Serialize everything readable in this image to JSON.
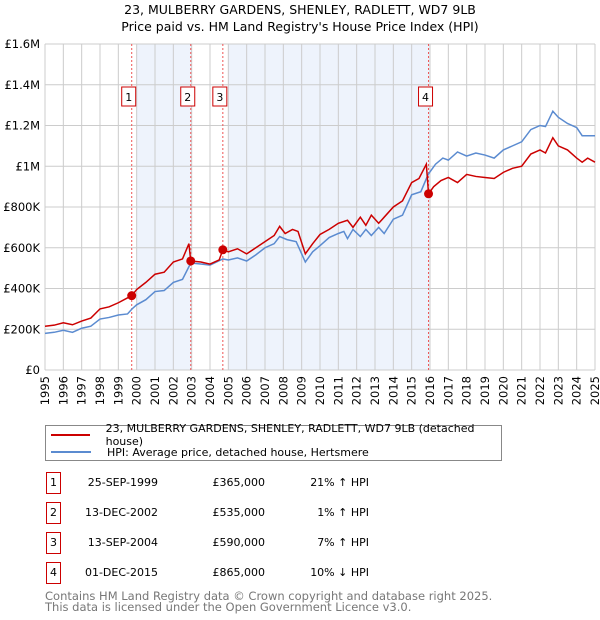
{
  "title": "23, MULBERRY GARDENS, SHENLEY, RADLETT, WD7 9LB",
  "subtitle": "Price paid vs. HM Land Registry's House Price Index (HPI)",
  "colors": {
    "property": "#cc0000",
    "hpi": "#5b8bd0",
    "shade": "#eef3fc",
    "grid": "#cccccc"
  },
  "chart_data": {
    "type": "line",
    "title": "23, MULBERRY GARDENS, SHENLEY, RADLETT, WD7 9LB",
    "xlim": [
      1995,
      2025
    ],
    "ylim": [
      0,
      1600000
    ],
    "yticks": [
      {
        "v": 0,
        "label": "£0"
      },
      {
        "v": 200000,
        "label": "£200K"
      },
      {
        "v": 400000,
        "label": "£400K"
      },
      {
        "v": 600000,
        "label": "£600K"
      },
      {
        "v": 800000,
        "label": "£800K"
      },
      {
        "v": 1000000,
        "label": "£1M"
      },
      {
        "v": 1200000,
        "label": "£1.2M"
      },
      {
        "v": 1400000,
        "label": "£1.4M"
      },
      {
        "v": 1600000,
        "label": "£1.6M"
      }
    ],
    "xticks": [
      "1995",
      "1996",
      "1997",
      "1998",
      "1999",
      "2000",
      "2001",
      "2002",
      "2003",
      "2004",
      "2005",
      "2006",
      "2007",
      "2008",
      "2009",
      "2010",
      "2011",
      "2012",
      "2013",
      "2014",
      "2015",
      "2016",
      "2017",
      "2018",
      "2019",
      "2020",
      "2021",
      "2022",
      "2023",
      "2024",
      "2025"
    ],
    "shaded_ranges": [
      [
        2000,
        2003
      ],
      [
        2005,
        2016
      ]
    ],
    "series": [
      {
        "name": "23, MULBERRY GARDENS, SHENLEY, RADLETT, WD7 9LB (detached house)",
        "color": "#cc0000",
        "points": [
          [
            1995,
            215
          ],
          [
            1995.5,
            220
          ],
          [
            1996,
            232
          ],
          [
            1996.5,
            222
          ],
          [
            1997,
            240
          ],
          [
            1997.5,
            255
          ],
          [
            1998,
            300
          ],
          [
            1998.5,
            310
          ],
          [
            1999,
            330
          ],
          [
            1999.73,
            365
          ],
          [
            2000,
            395
          ],
          [
            2000.5,
            430
          ],
          [
            2001,
            470
          ],
          [
            2001.5,
            480
          ],
          [
            2002,
            530
          ],
          [
            2002.5,
            545
          ],
          [
            2002.85,
            620
          ],
          [
            2002.95,
            535
          ],
          [
            2003.5,
            530
          ],
          [
            2004,
            520
          ],
          [
            2004.5,
            540
          ],
          [
            2004.7,
            590
          ],
          [
            2005,
            580
          ],
          [
            2005.5,
            595
          ],
          [
            2006,
            570
          ],
          [
            2006.5,
            600
          ],
          [
            2007,
            630
          ],
          [
            2007.5,
            660
          ],
          [
            2007.8,
            705
          ],
          [
            2008.1,
            670
          ],
          [
            2008.5,
            690
          ],
          [
            2008.8,
            680
          ],
          [
            2009.2,
            570
          ],
          [
            2009.6,
            620
          ],
          [
            2010,
            665
          ],
          [
            2010.5,
            690
          ],
          [
            2011,
            720
          ],
          [
            2011.5,
            735
          ],
          [
            2011.8,
            700
          ],
          [
            2012.2,
            750
          ],
          [
            2012.5,
            710
          ],
          [
            2012.8,
            760
          ],
          [
            2013.2,
            720
          ],
          [
            2013.5,
            750
          ],
          [
            2014,
            800
          ],
          [
            2014.5,
            830
          ],
          [
            2015,
            920
          ],
          [
            2015.4,
            940
          ],
          [
            2015.8,
            1010
          ],
          [
            2015.92,
            865
          ],
          [
            2016.2,
            900
          ],
          [
            2016.6,
            930
          ],
          [
            2017,
            945
          ],
          [
            2017.5,
            920
          ],
          [
            2018,
            960
          ],
          [
            2018.5,
            950
          ],
          [
            2019,
            945
          ],
          [
            2019.5,
            940
          ],
          [
            2020,
            970
          ],
          [
            2020.5,
            990
          ],
          [
            2021,
            1000
          ],
          [
            2021.5,
            1060
          ],
          [
            2022,
            1080
          ],
          [
            2022.3,
            1065
          ],
          [
            2022.7,
            1140
          ],
          [
            2023,
            1100
          ],
          [
            2023.5,
            1080
          ],
          [
            2024,
            1040
          ],
          [
            2024.3,
            1020
          ],
          [
            2024.6,
            1040
          ],
          [
            2025,
            1020
          ]
        ]
      },
      {
        "name": "HPI: Average price, detached house, Hertsmere",
        "color": "#5b8bd0",
        "points": [
          [
            1995,
            180
          ],
          [
            1995.5,
            185
          ],
          [
            1996,
            195
          ],
          [
            1996.5,
            185
          ],
          [
            1997,
            205
          ],
          [
            1997.5,
            215
          ],
          [
            1998,
            250
          ],
          [
            1998.5,
            258
          ],
          [
            1999,
            270
          ],
          [
            1999.5,
            275
          ],
          [
            1999.75,
            300
          ],
          [
            2000,
            320
          ],
          [
            2000.5,
            345
          ],
          [
            2001,
            385
          ],
          [
            2001.5,
            390
          ],
          [
            2002,
            430
          ],
          [
            2002.5,
            445
          ],
          [
            2002.95,
            525
          ],
          [
            2003.5,
            520
          ],
          [
            2004,
            515
          ],
          [
            2004.7,
            545
          ],
          [
            2005,
            540
          ],
          [
            2005.5,
            550
          ],
          [
            2006,
            535
          ],
          [
            2006.5,
            565
          ],
          [
            2007,
            600
          ],
          [
            2007.5,
            620
          ],
          [
            2007.8,
            655
          ],
          [
            2008.2,
            640
          ],
          [
            2008.7,
            630
          ],
          [
            2009.2,
            530
          ],
          [
            2009.6,
            580
          ],
          [
            2010,
            610
          ],
          [
            2010.5,
            650
          ],
          [
            2011,
            670
          ],
          [
            2011.3,
            680
          ],
          [
            2011.5,
            645
          ],
          [
            2011.8,
            690
          ],
          [
            2012.2,
            655
          ],
          [
            2012.5,
            690
          ],
          [
            2012.8,
            660
          ],
          [
            2013.2,
            700
          ],
          [
            2013.5,
            670
          ],
          [
            2014,
            740
          ],
          [
            2014.5,
            760
          ],
          [
            2015,
            860
          ],
          [
            2015.5,
            875
          ],
          [
            2015.9,
            960
          ],
          [
            2016.3,
            1010
          ],
          [
            2016.7,
            1040
          ],
          [
            2017,
            1030
          ],
          [
            2017.5,
            1070
          ],
          [
            2018,
            1050
          ],
          [
            2018.5,
            1065
          ],
          [
            2019,
            1055
          ],
          [
            2019.5,
            1040
          ],
          [
            2020,
            1080
          ],
          [
            2020.5,
            1100
          ],
          [
            2021,
            1120
          ],
          [
            2021.5,
            1180
          ],
          [
            2022,
            1200
          ],
          [
            2022.3,
            1195
          ],
          [
            2022.7,
            1270
          ],
          [
            2023,
            1240
          ],
          [
            2023.5,
            1210
          ],
          [
            2024,
            1190
          ],
          [
            2024.3,
            1150
          ],
          [
            2024.6,
            1150
          ],
          [
            2025,
            1150
          ]
        ]
      }
    ],
    "sales": [
      {
        "n": "1",
        "t": 1999.73,
        "v": 365000
      },
      {
        "n": "2",
        "t": 2002.95,
        "v": 535000
      },
      {
        "n": "3",
        "t": 2004.7,
        "v": 590000
      },
      {
        "n": "4",
        "t": 2015.92,
        "v": 865000
      }
    ]
  },
  "legend": {
    "property": "23, MULBERRY GARDENS, SHENLEY, RADLETT, WD7 9LB (detached house)",
    "hpi": "HPI: Average price, detached house, Hertsmere"
  },
  "transactions": [
    {
      "n": "1",
      "date": "25-SEP-1999",
      "price": "£365,000",
      "hpi": "21% ↑ HPI"
    },
    {
      "n": "2",
      "date": "13-DEC-2002",
      "price": "£535,000",
      "hpi": "1% ↑ HPI"
    },
    {
      "n": "3",
      "date": "13-SEP-2004",
      "price": "£590,000",
      "hpi": "7% ↑ HPI"
    },
    {
      "n": "4",
      "date": "01-DEC-2015",
      "price": "£865,000",
      "hpi": "10% ↓ HPI"
    }
  ],
  "footer": {
    "line1": "Contains HM Land Registry data © Crown copyright and database right 2025.",
    "line2": "This data is licensed under the Open Government Licence v3.0."
  }
}
